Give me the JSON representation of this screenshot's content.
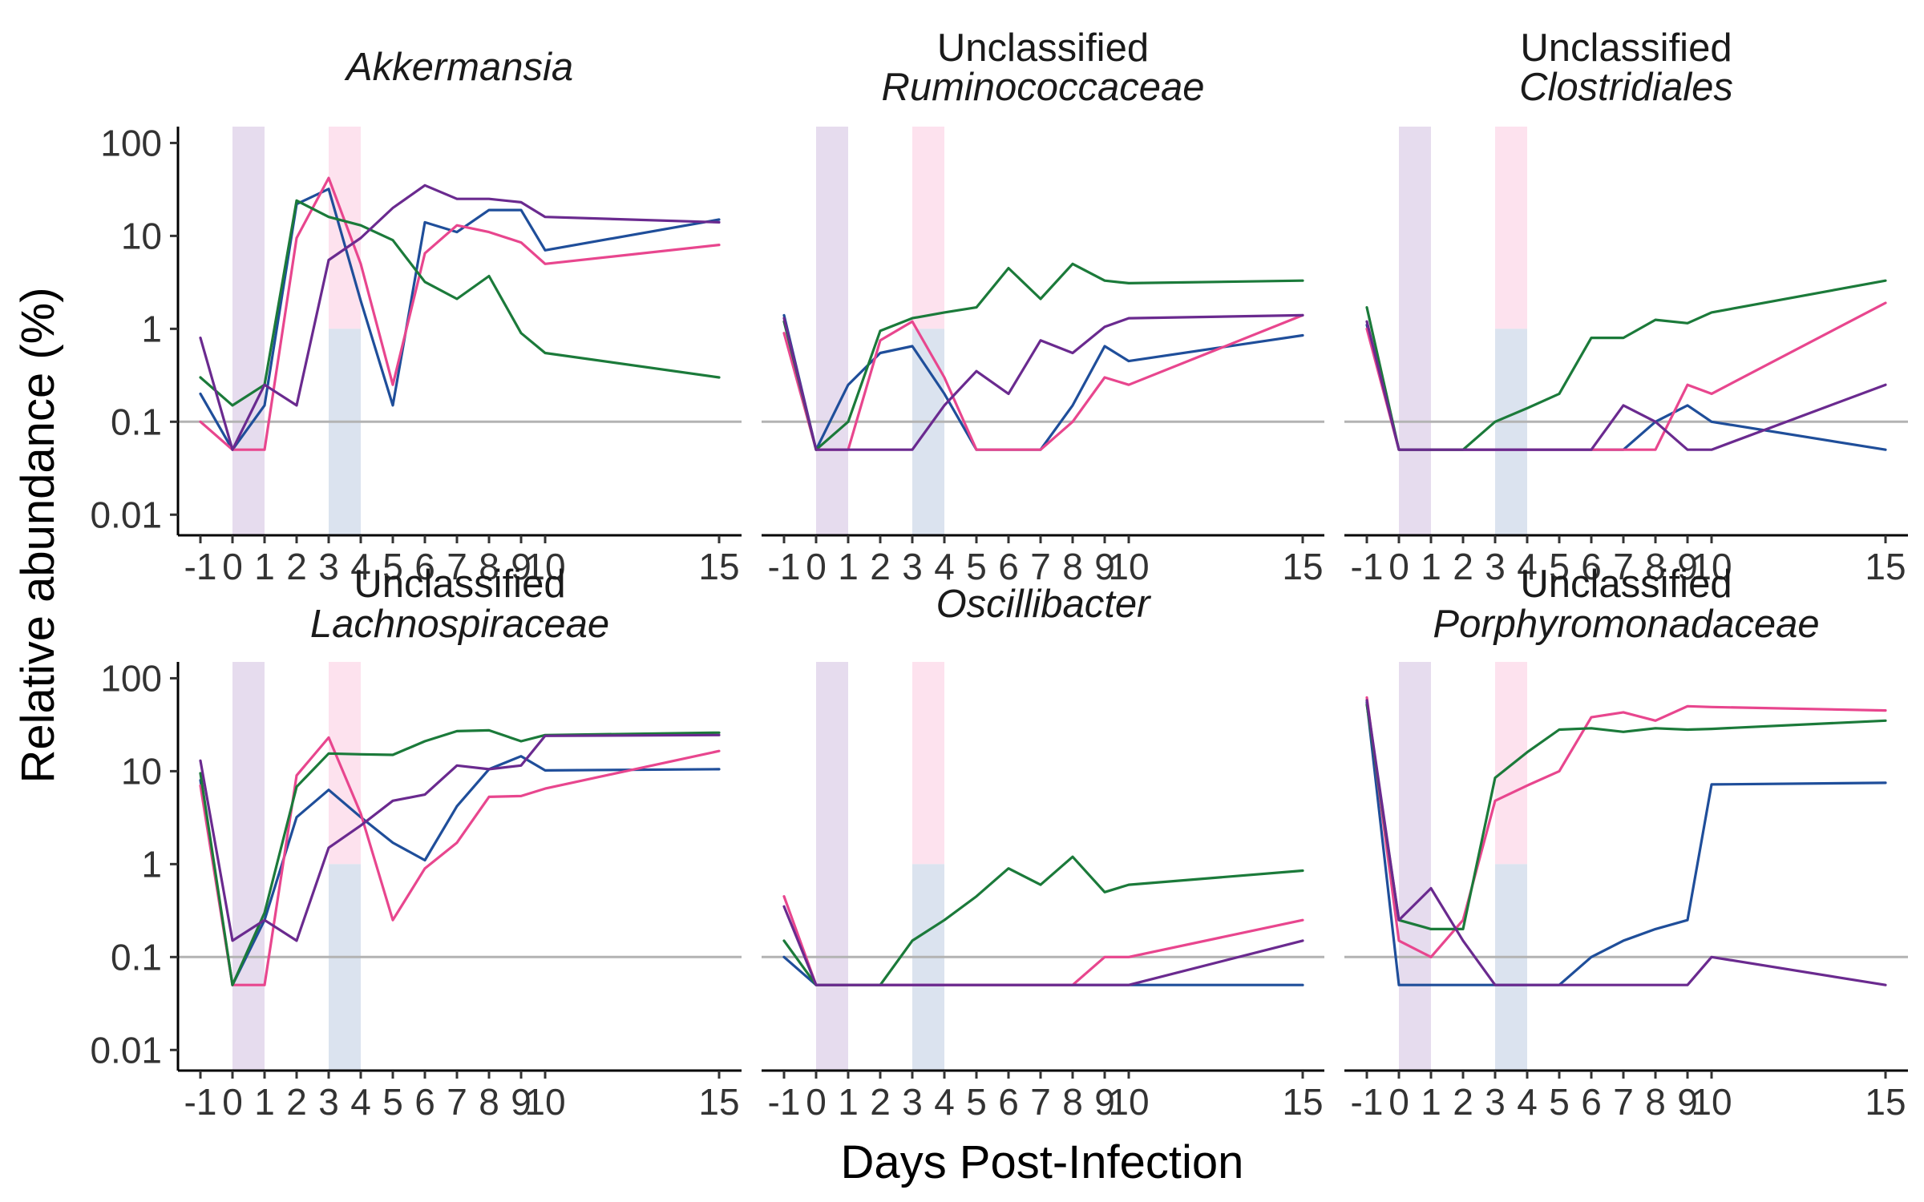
{
  "chart_data": {
    "type": "line",
    "xlabel": "Days Post-Infection",
    "ylabel": "Relative abundance (%)",
    "x_ticks": [
      -1,
      0,
      1,
      2,
      3,
      4,
      5,
      6,
      7,
      8,
      9,
      10,
      15
    ],
    "x_tick_labels": [
      "-1",
      "0",
      "1",
      "2",
      "3",
      "4",
      "5",
      "6",
      "7",
      "8",
      "9",
      "10",
      "15"
    ],
    "y_scale": "log10",
    "ylim": [
      0.006,
      150
    ],
    "y_ticks": [
      0.01,
      0.1,
      1,
      10,
      100
    ],
    "y_tick_labels": [
      "0.01",
      "0.1",
      "1",
      "10",
      "100"
    ],
    "reference_line": 0.1,
    "grid": false,
    "legend": "none",
    "series_colors": [
      "#1f4e9a",
      "#e8468e",
      "#1b7a3a",
      "#6a2a8f"
    ],
    "reference_line_color": "#b3b3b3",
    "shaded_regions": [
      {
        "x_range": [
          0,
          1
        ],
        "y_range": [
          0.006,
          150
        ],
        "color": "#e6dcee"
      },
      {
        "x_range": [
          3,
          4
        ],
        "y_range": [
          1,
          150
        ],
        "color": "#fde2ee"
      },
      {
        "x_range": [
          3,
          4
        ],
        "y_range": [
          0.006,
          1
        ],
        "color": "#dbe3ef"
      }
    ],
    "panels": [
      {
        "title_line1": "",
        "title_line2": "Akkermansia",
        "series": [
          {
            "x": [
              -1,
              0,
              1,
              2,
              3,
              4,
              5,
              6,
              7,
              8,
              9,
              10,
              15
            ],
            "y": [
              0.2,
              0.05,
              0.15,
              22,
              32,
              2,
              0.15,
              14,
              11,
              19,
              19,
              7,
              15
            ]
          },
          {
            "x": [
              -1,
              0,
              1,
              2,
              3,
              4,
              5,
              6,
              7,
              8,
              9,
              10,
              15
            ],
            "y": [
              0.1,
              0.05,
              0.05,
              9.5,
              42,
              5,
              0.25,
              6.5,
              13,
              11,
              8.5,
              5,
              8
            ]
          },
          {
            "x": [
              -1,
              0,
              1,
              2,
              3,
              4,
              5,
              6,
              7,
              8,
              9,
              10,
              15
            ],
            "y": [
              0.3,
              0.15,
              0.25,
              24,
              16,
              13,
              9,
              3.2,
              2.1,
              3.7,
              0.9,
              0.55,
              0.3
            ]
          },
          {
            "x": [
              -1,
              0,
              1,
              2,
              3,
              4,
              5,
              6,
              7,
              8,
              9,
              10,
              15
            ],
            "y": [
              0.8,
              0.05,
              0.25,
              0.15,
              5.5,
              9.5,
              20,
              35,
              25,
              25,
              23,
              16,
              14
            ]
          }
        ]
      },
      {
        "title_line1": "Unclassified",
        "title_line2": "Ruminococcaceae",
        "series": [
          {
            "x": [
              -1,
              0,
              1,
              2,
              3,
              4,
              5,
              6,
              7,
              8,
              9,
              10,
              15
            ],
            "y": [
              1.4,
              0.05,
              0.25,
              0.55,
              0.65,
              0.2,
              0.05,
              0.05,
              0.05,
              0.15,
              0.65,
              0.45,
              0.85
            ]
          },
          {
            "x": [
              -1,
              0,
              1,
              2,
              3,
              4,
              5,
              6,
              7,
              8,
              9,
              10,
              15
            ],
            "y": [
              0.9,
              0.05,
              0.05,
              0.75,
              1.2,
              0.3,
              0.05,
              0.05,
              0.05,
              0.1,
              0.3,
              0.25,
              1.4
            ]
          },
          {
            "x": [
              -1,
              0,
              1,
              2,
              3,
              4,
              5,
              6,
              7,
              8,
              9,
              10,
              15
            ],
            "y": [
              1.2,
              0.05,
              0.1,
              0.95,
              1.3,
              1.5,
              1.7,
              4.5,
              2.1,
              5,
              3.3,
              3.1,
              3.3
            ]
          },
          {
            "x": [
              -1,
              0,
              1,
              2,
              3,
              4,
              5,
              6,
              7,
              8,
              9,
              10,
              15
            ],
            "y": [
              1.3,
              0.05,
              0.05,
              0.05,
              0.05,
              0.15,
              0.35,
              0.2,
              0.75,
              0.55,
              1.05,
              1.3,
              1.4
            ]
          }
        ]
      },
      {
        "title_line1": "Unclassified",
        "title_line2": "Clostridiales",
        "series": [
          {
            "x": [
              -1,
              0,
              1,
              2,
              3,
              4,
              5,
              6,
              7,
              8,
              9,
              10,
              15
            ],
            "y": [
              1.1,
              0.05,
              0.05,
              0.05,
              0.05,
              0.05,
              0.05,
              0.05,
              0.05,
              0.1,
              0.15,
              0.1,
              0.05
            ]
          },
          {
            "x": [
              -1,
              0,
              1,
              2,
              3,
              4,
              5,
              6,
              7,
              8,
              9,
              10,
              15
            ],
            "y": [
              1.0,
              0.05,
              0.05,
              0.05,
              0.05,
              0.05,
              0.05,
              0.05,
              0.05,
              0.05,
              0.25,
              0.2,
              1.9
            ]
          },
          {
            "x": [
              -1,
              0,
              1,
              2,
              3,
              4,
              5,
              6,
              7,
              8,
              9,
              10,
              15
            ],
            "y": [
              1.7,
              0.05,
              0.05,
              0.05,
              0.1,
              0.14,
              0.2,
              0.8,
              0.8,
              1.25,
              1.15,
              1.5,
              3.3
            ]
          },
          {
            "x": [
              -1,
              0,
              1,
              2,
              3,
              4,
              5,
              6,
              7,
              8,
              9,
              10,
              15
            ],
            "y": [
              1.2,
              0.05,
              0.05,
              0.05,
              0.05,
              0.05,
              0.05,
              0.05,
              0.15,
              0.1,
              0.05,
              0.05,
              0.25
            ]
          }
        ]
      },
      {
        "title_line1": "Unclassified",
        "title_line2": "Lachnospiraceae",
        "series": [
          {
            "x": [
              -1,
              0,
              1,
              2,
              3,
              4,
              5,
              6,
              7,
              8,
              9,
              10,
              15
            ],
            "y": [
              8,
              0.05,
              0.25,
              3.2,
              6.3,
              3.2,
              1.7,
              1.1,
              4.2,
              10.5,
              14.5,
              10.2,
              10.5
            ]
          },
          {
            "x": [
              -1,
              0,
              1,
              2,
              3,
              4,
              5,
              6,
              7,
              8,
              9,
              10,
              15
            ],
            "y": [
              7,
              0.05,
              0.05,
              9,
              23,
              3.5,
              0.25,
              0.9,
              1.7,
              5.3,
              5.4,
              6.5,
              16.5
            ]
          },
          {
            "x": [
              -1,
              0,
              1,
              2,
              3,
              4,
              5,
              6,
              7,
              8,
              9,
              10,
              15
            ],
            "y": [
              9.5,
              0.05,
              0.3,
              6.8,
              15.5,
              15.2,
              15,
              21,
              27,
              27.5,
              21,
              24.5,
              26
            ]
          },
          {
            "x": [
              -1,
              0,
              1,
              2,
              3,
              4,
              5,
              6,
              7,
              8,
              9,
              10,
              15
            ],
            "y": [
              13,
              0.15,
              0.25,
              0.15,
              1.5,
              2.6,
              4.8,
              5.6,
              11.5,
              10.5,
              11.5,
              24,
              24.5
            ]
          }
        ]
      },
      {
        "title_line1": "",
        "title_line2": "Oscillibacter",
        "series": [
          {
            "x": [
              -1,
              0,
              1,
              2,
              3,
              4,
              5,
              6,
              7,
              8,
              9,
              10,
              15
            ],
            "y": [
              0.1,
              0.05,
              0.05,
              0.05,
              0.05,
              0.05,
              0.05,
              0.05,
              0.05,
              0.05,
              0.05,
              0.05,
              0.05
            ]
          },
          {
            "x": [
              -1,
              0,
              1,
              2,
              3,
              4,
              5,
              6,
              7,
              8,
              9,
              10,
              15
            ],
            "y": [
              0.45,
              0.05,
              0.05,
              0.05,
              0.05,
              0.05,
              0.05,
              0.05,
              0.05,
              0.05,
              0.1,
              0.1,
              0.25
            ]
          },
          {
            "x": [
              -1,
              0,
              1,
              2,
              3,
              4,
              5,
              6,
              7,
              8,
              9,
              10,
              15
            ],
            "y": [
              0.15,
              0.05,
              0.05,
              0.05,
              0.15,
              0.25,
              0.45,
              0.9,
              0.6,
              1.2,
              0.5,
              0.6,
              0.85
            ]
          },
          {
            "x": [
              -1,
              0,
              1,
              2,
              3,
              4,
              5,
              6,
              7,
              8,
              9,
              10,
              15
            ],
            "y": [
              0.35,
              0.05,
              0.05,
              0.05,
              0.05,
              0.05,
              0.05,
              0.05,
              0.05,
              0.05,
              0.05,
              0.05,
              0.15
            ]
          }
        ]
      },
      {
        "title_line1": "Unclassified",
        "title_line2": "Porphyromonadaceae",
        "series": [
          {
            "x": [
              -1,
              0,
              1,
              2,
              3,
              4,
              5,
              6,
              7,
              8,
              9,
              10,
              15
            ],
            "y": [
              55,
              0.05,
              0.05,
              0.05,
              0.05,
              0.05,
              0.05,
              0.1,
              0.15,
              0.2,
              0.25,
              7.2,
              7.5
            ]
          },
          {
            "x": [
              -1,
              0,
              1,
              2,
              3,
              4,
              5,
              6,
              7,
              8,
              9,
              10,
              15
            ],
            "y": [
              62,
              0.15,
              0.1,
              0.25,
              4.8,
              7,
              10,
              38,
              43,
              35,
              50,
              49,
              45
            ]
          },
          {
            "x": [
              -1,
              0,
              1,
              2,
              3,
              4,
              5,
              6,
              7,
              8,
              9,
              10,
              15
            ],
            "y": [
              52,
              0.25,
              0.2,
              0.2,
              8.5,
              16,
              28,
              29,
              26.5,
              29,
              28,
              28.5,
              35
            ]
          },
          {
            "x": [
              -1,
              0,
              1,
              2,
              3,
              4,
              5,
              6,
              7,
              8,
              9,
              10,
              15
            ],
            "y": [
              58,
              0.25,
              0.55,
              0.15,
              0.05,
              0.05,
              0.05,
              0.05,
              0.05,
              0.05,
              0.05,
              0.1,
              0.05
            ]
          }
        ]
      }
    ]
  }
}
